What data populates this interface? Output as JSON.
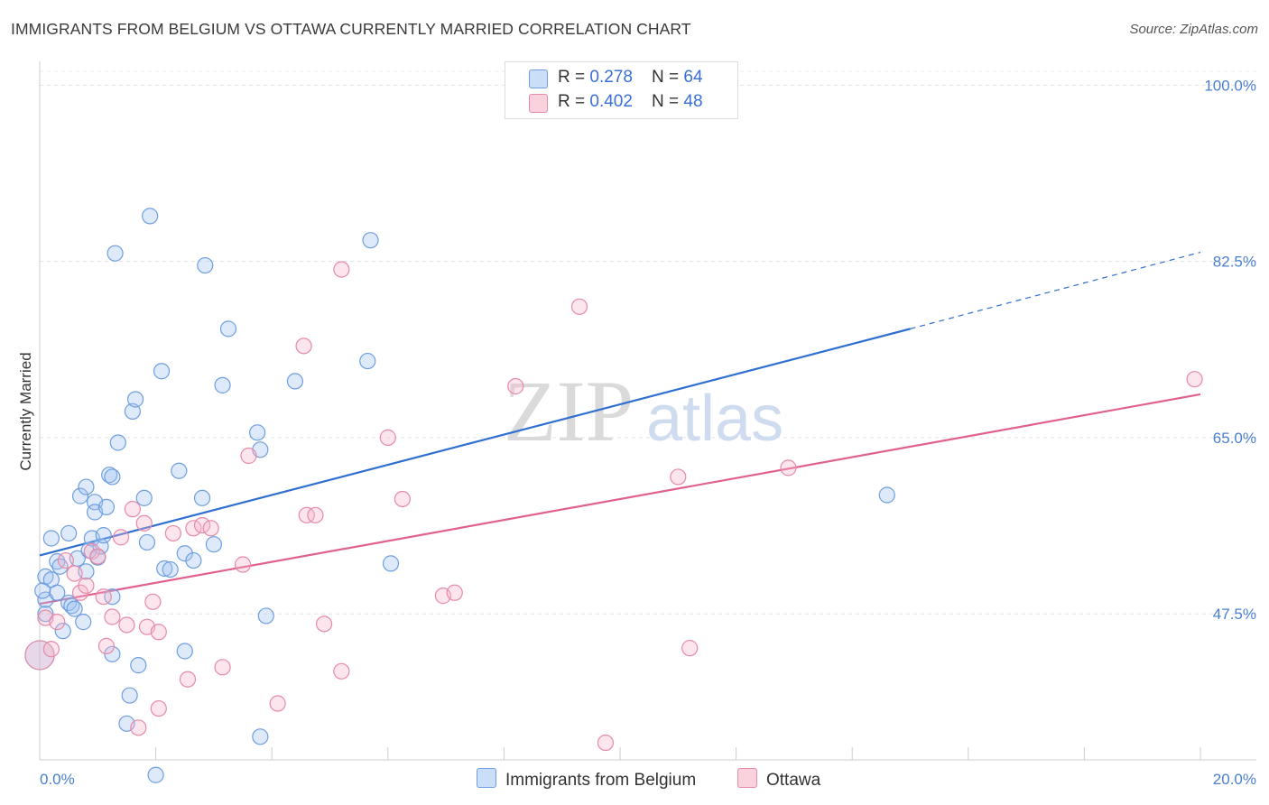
{
  "title": "IMMIGRANTS FROM BELGIUM VS OTTAWA CURRENTLY MARRIED CORRELATION CHART",
  "source": "Source: ZipAtlas.com",
  "watermark": {
    "zip": "ZIP",
    "atlas": "atlas"
  },
  "colors": {
    "blue": "#4a7fd0",
    "blue_fill": "rgba(160,195,240,0.35)",
    "blue_line": "#2f6fd0",
    "pink": "#e887a8",
    "pink_fill": "rgba(245,180,200,0.35)",
    "pink_line": "#e0608f"
  },
  "legend": {
    "rows": [
      {
        "r_label": "R = ",
        "r_value": "0.278",
        "n_label": "N = ",
        "n_value": "64"
      },
      {
        "r_label": "R = ",
        "r_value": "0.402",
        "n_label": "N = ",
        "n_value": "48"
      }
    ],
    "series_names": [
      "Immigrants from Belgium",
      "Ottawa"
    ]
  },
  "chart_data": {
    "type": "scatter",
    "title": "IMMIGRANTS FROM BELGIUM VS OTTAWA CURRENTLY MARRIED CORRELATION CHART",
    "ylabel": "Currently Married",
    "xlabel": "",
    "xlim": [
      0,
      20
    ],
    "ylim": [
      33,
      102
    ],
    "x_tick_labels": [
      "0.0%",
      "20.0%"
    ],
    "y_ticks": [
      47.5,
      65.0,
      82.5,
      100.0
    ],
    "y_tick_labels": [
      "47.5%",
      "65.0%",
      "82.5%",
      "100.0%"
    ],
    "series": [
      {
        "name": "Immigrants from Belgium",
        "R": 0.278,
        "N": 64,
        "trend": {
          "x0": 0,
          "y0": 53.3,
          "x1": 15.0,
          "y1": 75.8,
          "dash_to_x": 20,
          "dash_to_y": 83.4
        },
        "points": [
          [
            0.0,
            43.4
          ],
          [
            0.1,
            51.2
          ],
          [
            0.1,
            48.9
          ],
          [
            0.1,
            47.5
          ],
          [
            0.2,
            55.0
          ],
          [
            0.2,
            50.9
          ],
          [
            0.3,
            52.7
          ],
          [
            0.3,
            49.6
          ],
          [
            0.35,
            52.2
          ],
          [
            0.4,
            45.8
          ],
          [
            0.5,
            55.5
          ],
          [
            0.5,
            48.6
          ],
          [
            0.55,
            48.3
          ],
          [
            0.6,
            48.0
          ],
          [
            0.65,
            53.0
          ],
          [
            0.7,
            59.2
          ],
          [
            0.75,
            46.7
          ],
          [
            0.8,
            60.1
          ],
          [
            0.8,
            51.7
          ],
          [
            0.85,
            53.8
          ],
          [
            0.9,
            55.0
          ],
          [
            0.95,
            58.6
          ],
          [
            0.95,
            57.6
          ],
          [
            1.0,
            53.1
          ],
          [
            1.05,
            54.2
          ],
          [
            1.1,
            55.3
          ],
          [
            1.15,
            58.1
          ],
          [
            1.2,
            61.3
          ],
          [
            1.25,
            61.1
          ],
          [
            1.25,
            49.2
          ],
          [
            1.25,
            43.5
          ],
          [
            1.3,
            83.3
          ],
          [
            1.35,
            64.5
          ],
          [
            1.5,
            36.6
          ],
          [
            1.55,
            39.4
          ],
          [
            1.6,
            67.6
          ],
          [
            1.65,
            68.8
          ],
          [
            1.7,
            42.4
          ],
          [
            1.8,
            59.0
          ],
          [
            1.85,
            54.6
          ],
          [
            1.9,
            87.0
          ],
          [
            2.0,
            31.5
          ],
          [
            2.1,
            71.6
          ],
          [
            2.15,
            52.0
          ],
          [
            2.25,
            51.9
          ],
          [
            2.4,
            61.7
          ],
          [
            2.5,
            53.5
          ],
          [
            2.5,
            43.8
          ],
          [
            2.65,
            52.8
          ],
          [
            2.8,
            59.0
          ],
          [
            2.85,
            82.1
          ],
          [
            3.0,
            54.4
          ],
          [
            3.15,
            70.2
          ],
          [
            3.25,
            75.8
          ],
          [
            3.75,
            65.5
          ],
          [
            3.8,
            63.8
          ],
          [
            3.8,
            35.3
          ],
          [
            3.9,
            47.3
          ],
          [
            4.4,
            70.6
          ],
          [
            5.65,
            72.6
          ],
          [
            5.7,
            84.6
          ],
          [
            6.05,
            52.5
          ],
          [
            14.6,
            59.3
          ],
          [
            0.05,
            49.8
          ]
        ]
      },
      {
        "name": "Ottawa",
        "R": 0.402,
        "N": 48,
        "trend": {
          "x0": 0,
          "y0": 48.5,
          "x1": 20,
          "y1": 69.3
        },
        "points": [
          [
            0.0,
            43.4
          ],
          [
            0.1,
            47.1
          ],
          [
            0.2,
            44.0
          ],
          [
            0.3,
            46.7
          ],
          [
            0.45,
            52.8
          ],
          [
            0.6,
            51.5
          ],
          [
            0.7,
            49.6
          ],
          [
            0.8,
            50.3
          ],
          [
            0.9,
            53.7
          ],
          [
            1.0,
            53.2
          ],
          [
            1.1,
            49.2
          ],
          [
            1.15,
            44.3
          ],
          [
            1.25,
            47.2
          ],
          [
            1.4,
            55.1
          ],
          [
            1.5,
            46.4
          ],
          [
            1.6,
            57.9
          ],
          [
            1.7,
            36.2
          ],
          [
            1.8,
            56.5
          ],
          [
            1.85,
            46.2
          ],
          [
            1.95,
            48.7
          ],
          [
            2.05,
            38.1
          ],
          [
            2.05,
            45.7
          ],
          [
            2.3,
            55.5
          ],
          [
            2.55,
            41.0
          ],
          [
            2.65,
            56.0
          ],
          [
            2.8,
            56.3
          ],
          [
            2.95,
            56.0
          ],
          [
            3.15,
            42.2
          ],
          [
            3.5,
            52.4
          ],
          [
            3.6,
            63.2
          ],
          [
            4.1,
            38.6
          ],
          [
            4.55,
            74.1
          ],
          [
            4.6,
            57.3
          ],
          [
            4.75,
            57.3
          ],
          [
            4.9,
            46.5
          ],
          [
            5.2,
            81.7
          ],
          [
            5.2,
            41.8
          ],
          [
            6.0,
            65.0
          ],
          [
            6.25,
            58.9
          ],
          [
            6.95,
            49.3
          ],
          [
            7.15,
            49.6
          ],
          [
            8.2,
            70.1
          ],
          [
            9.3,
            78.0
          ],
          [
            9.75,
            34.7
          ],
          [
            11.0,
            61.1
          ],
          [
            11.2,
            44.1
          ],
          [
            12.9,
            62.0
          ],
          [
            19.9,
            70.8
          ]
        ]
      }
    ]
  }
}
